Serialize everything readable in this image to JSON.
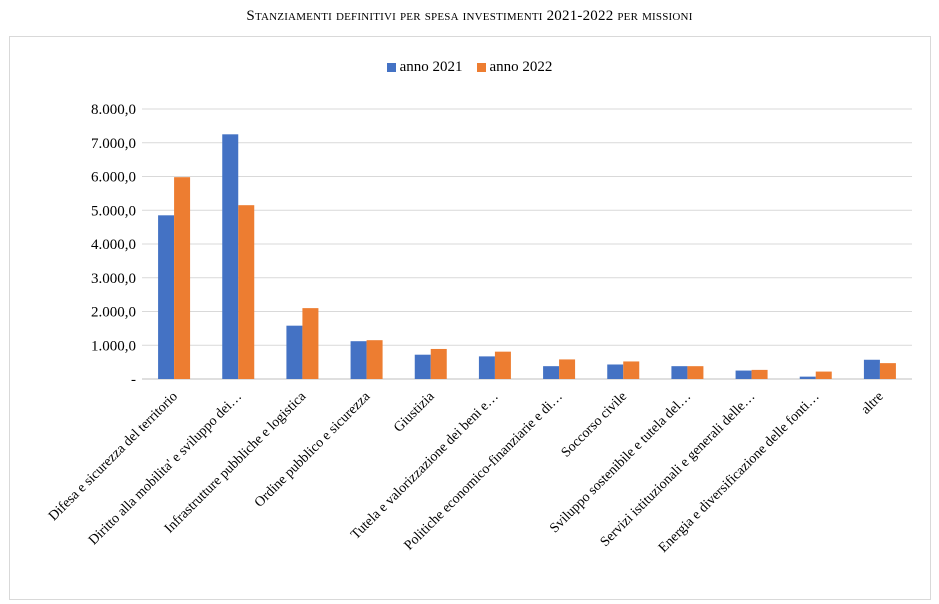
{
  "chart_data": {
    "type": "bar",
    "title": "Stanziamenti definitivi per spesa investimenti 2021-2022 per missioni",
    "xlabel": "",
    "ylabel": "",
    "ylim": [
      0,
      8000
    ],
    "yticks": [
      0,
      1000,
      2000,
      3000,
      4000,
      5000,
      6000,
      7000,
      8000
    ],
    "ytick_labels": [
      "-",
      "1.000,0",
      "2.000,0",
      "3.000,0",
      "4.000,0",
      "5.000,0",
      "6.000,0",
      "7.000,0",
      "8.000,0"
    ],
    "grid": true,
    "legend_position": "top",
    "categories": [
      "Difesa e sicurezza del territorio",
      "Diritto alla mobilita' e sviluppo dei…",
      "Infrastrutture pubbliche e logistica",
      "Ordine pubblico e sicurezza",
      "Giustizia",
      "Tutela e valorizzazione dei beni e…",
      "Politiche economico-finanziarie e di…",
      "Soccorso civile",
      "Sviluppo sostenibile e tutela del…",
      "Servizi istituzionali e generali delle…",
      "Energia e diversificazione delle fonti…",
      "altre"
    ],
    "series": [
      {
        "name": "anno 2021",
        "color": "#4472c4",
        "values": [
          4850,
          7250,
          1580,
          1120,
          720,
          670,
          380,
          430,
          380,
          250,
          70,
          570
        ]
      },
      {
        "name": "anno 2022",
        "color": "#ed7d31",
        "values": [
          5980,
          5150,
          2100,
          1150,
          890,
          810,
          580,
          520,
          380,
          270,
          220,
          470
        ]
      }
    ]
  }
}
